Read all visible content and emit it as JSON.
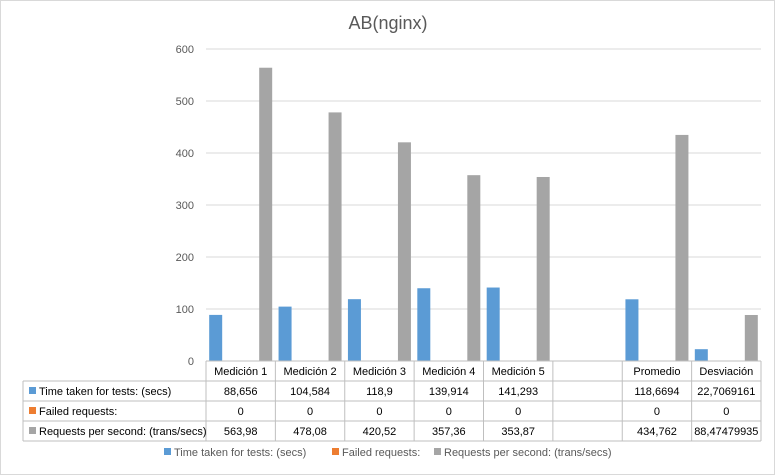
{
  "chart_data": {
    "type": "bar",
    "title": "AB(nginx)",
    "categories": [
      "Medición 1",
      "Medición 2",
      "Medición 3",
      "Medición 4",
      "Medición 5",
      "",
      "Promedio",
      "Desviación"
    ],
    "ylim": [
      0,
      600
    ],
    "yticks": [
      "0",
      "100",
      "200",
      "300",
      "400",
      "500",
      "600"
    ],
    "grid": true,
    "legend_position": "bottom",
    "data_table": true,
    "series": [
      {
        "name": "Time taken for tests: (secs)",
        "color": "#5b9bd5",
        "values": [
          88.656,
          104.584,
          118.9,
          139.914,
          141.293,
          null,
          118.6694,
          22.7069161
        ],
        "labels": [
          "88,656",
          "104,584",
          "118,9",
          "139,914",
          "141,293",
          "",
          "118,6694",
          "22,7069161"
        ]
      },
      {
        "name": "Failed requests:",
        "color": "#ed7d31",
        "values": [
          0,
          0,
          0,
          0,
          0,
          null,
          0,
          0
        ],
        "labels": [
          "0",
          "0",
          "0",
          "0",
          "0",
          "",
          "0",
          "0"
        ]
      },
      {
        "name": "Requests per second: (trans/secs)",
        "color": "#a5a5a5",
        "values": [
          563.98,
          478.08,
          420.52,
          357.36,
          353.87,
          null,
          434.762,
          88.47479935
        ],
        "labels": [
          "563,98",
          "478,08",
          "420,52",
          "357,36",
          "353,87",
          "",
          "434,762",
          "88,47479935"
        ]
      }
    ]
  }
}
